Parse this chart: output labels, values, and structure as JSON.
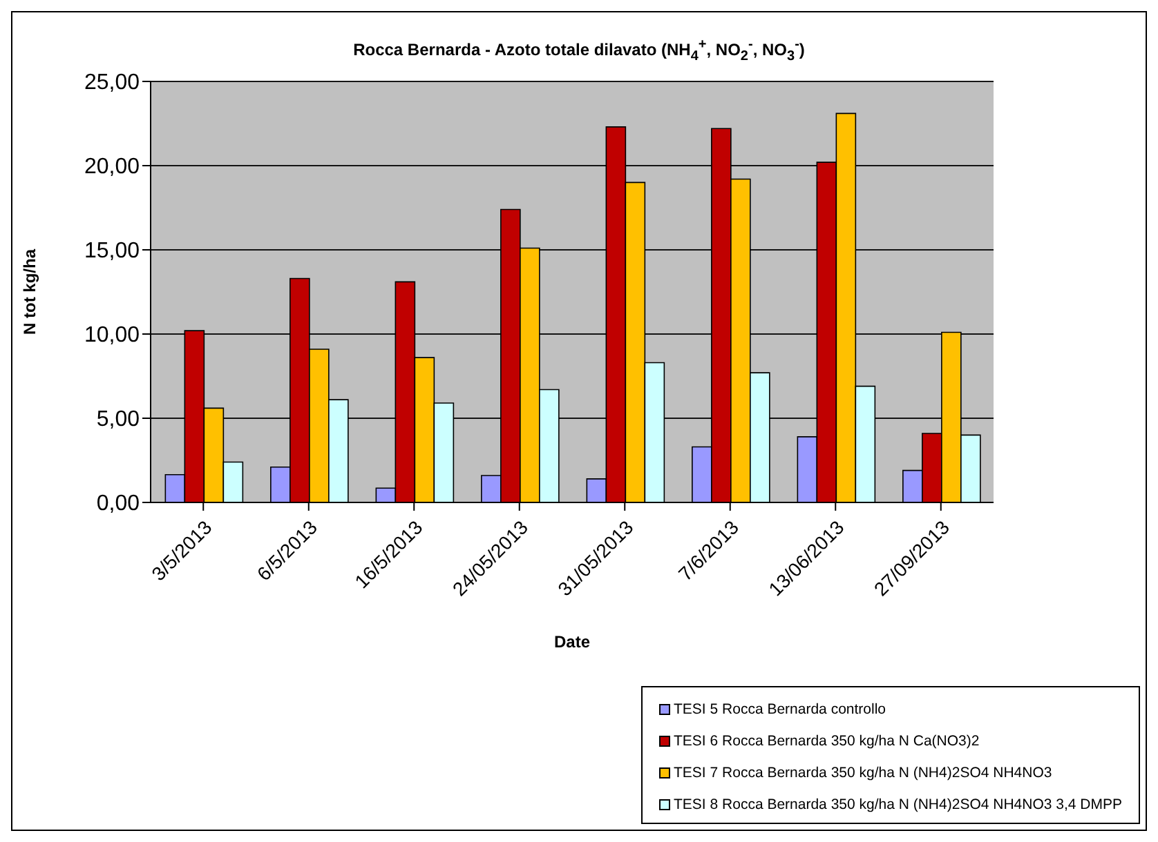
{
  "chart_data": {
    "type": "bar",
    "title": "Rocca Bernarda - Azoto totale dilavato (NH$_{4}$$^{+}$, NO$_{2}$$^{-}$, NO$_{3}$$^{-}$)",
    "xlabel": "Date",
    "ylabel": "N tot kg/ha",
    "categories": [
      "3/5/2013",
      "6/5/2013",
      "16/5/2013",
      "24/05/2013",
      "31/05/2013",
      "7/6/2013",
      "13/06/2013",
      "27/09/2013"
    ],
    "series": [
      {
        "name": "TESI 5 Rocca Bernarda controllo",
        "color": "#9999ff",
        "values": [
          1.65,
          2.1,
          0.85,
          1.6,
          1.4,
          3.3,
          3.9,
          1.9
        ]
      },
      {
        "name": "TESI 6 Rocca Bernarda 350 kg/ha N Ca(NO3)2",
        "color": "#c00000",
        "values": [
          10.2,
          13.3,
          13.1,
          17.4,
          22.3,
          22.2,
          20.2,
          4.1
        ]
      },
      {
        "name": "TESI 7 Rocca Bernarda 350 kg/ha N (NH4)2SO4 NH4NO3",
        "color": "#ffc000",
        "values": [
          5.6,
          9.1,
          8.6,
          15.1,
          19.0,
          19.2,
          23.1,
          10.1
        ]
      },
      {
        "name": "TESI 8 Rocca Bernarda 350 kg/ha N (NH4)2SO4 NH4NO3 3,4 DMPP",
        "color": "#ccffff",
        "values": [
          2.4,
          6.1,
          5.9,
          6.7,
          8.3,
          7.7,
          6.9,
          4.0
        ]
      }
    ],
    "ylim": [
      0,
      25
    ],
    "yticks": [
      {
        "value": 0,
        "label": "0,00"
      },
      {
        "value": 5,
        "label": "5,00"
      },
      {
        "value": 10,
        "label": "10,00"
      },
      {
        "value": 15,
        "label": "15,00"
      },
      {
        "value": 20,
        "label": "20,00"
      },
      {
        "value": 25,
        "label": "25,00"
      }
    ],
    "grid": "y",
    "legend": "bottom right"
  }
}
